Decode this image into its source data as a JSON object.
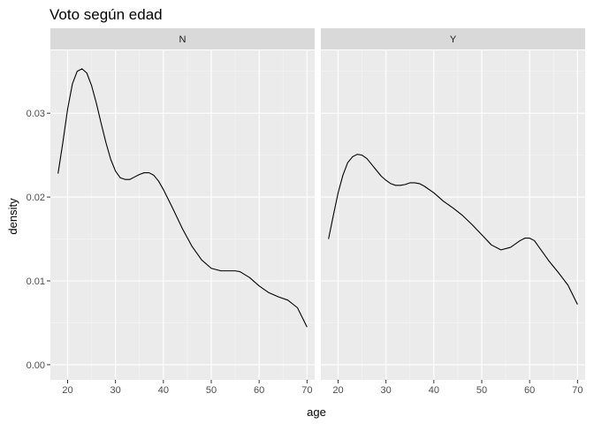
{
  "chart_data": {
    "type": "line",
    "title": "Voto según edad",
    "xlabel": "age",
    "ylabel": "density",
    "xlim": [
      16.4,
      71.6
    ],
    "ylim": [
      -0.0018,
      0.0375
    ],
    "x_ticks": [
      20,
      30,
      40,
      50,
      60,
      70
    ],
    "y_ticks": [
      0.0,
      0.01,
      0.02,
      0.03
    ],
    "y_tick_labels": [
      "0.00",
      "0.01",
      "0.02",
      "0.03"
    ],
    "grid": true,
    "facets": [
      {
        "strip_label": "N",
        "points": [
          [
            18,
            0.0228
          ],
          [
            19,
            0.0265
          ],
          [
            20,
            0.0305
          ],
          [
            21,
            0.0335
          ],
          [
            22,
            0.035
          ],
          [
            23,
            0.0353
          ],
          [
            24,
            0.0348
          ],
          [
            25,
            0.0333
          ],
          [
            26,
            0.0312
          ],
          [
            27,
            0.0288
          ],
          [
            28,
            0.0265
          ],
          [
            29,
            0.0245
          ],
          [
            30,
            0.0231
          ],
          [
            31,
            0.0223
          ],
          [
            32,
            0.0221
          ],
          [
            33,
            0.0221
          ],
          [
            34,
            0.0224
          ],
          [
            35,
            0.0227
          ],
          [
            36,
            0.0229
          ],
          [
            37,
            0.0229
          ],
          [
            38,
            0.0226
          ],
          [
            39,
            0.0219
          ],
          [
            40,
            0.0209
          ],
          [
            42,
            0.0186
          ],
          [
            44,
            0.0162
          ],
          [
            46,
            0.0141
          ],
          [
            48,
            0.0125
          ],
          [
            50,
            0.0115
          ],
          [
            52,
            0.0112
          ],
          [
            54,
            0.0112
          ],
          [
            55,
            0.0112
          ],
          [
            56,
            0.0111
          ],
          [
            58,
            0.0104
          ],
          [
            60,
            0.0094
          ],
          [
            62,
            0.0086
          ],
          [
            64,
            0.0081
          ],
          [
            66,
            0.0077
          ],
          [
            68,
            0.0068
          ],
          [
            70,
            0.0045
          ]
        ]
      },
      {
        "strip_label": "Y",
        "points": [
          [
            18,
            0.015
          ],
          [
            19,
            0.0178
          ],
          [
            20,
            0.0205
          ],
          [
            21,
            0.0226
          ],
          [
            22,
            0.0241
          ],
          [
            23,
            0.0248
          ],
          [
            24,
            0.0251
          ],
          [
            25,
            0.025
          ],
          [
            26,
            0.0246
          ],
          [
            27,
            0.0239
          ],
          [
            28,
            0.0232
          ],
          [
            29,
            0.0225
          ],
          [
            30,
            0.022
          ],
          [
            31,
            0.0216
          ],
          [
            32,
            0.0214
          ],
          [
            33,
            0.0214
          ],
          [
            34,
            0.0215
          ],
          [
            35,
            0.0217
          ],
          [
            36,
            0.0217
          ],
          [
            37,
            0.0216
          ],
          [
            38,
            0.0213
          ],
          [
            40,
            0.0205
          ],
          [
            42,
            0.0195
          ],
          [
            44,
            0.0187
          ],
          [
            46,
            0.0178
          ],
          [
            48,
            0.0167
          ],
          [
            50,
            0.0155
          ],
          [
            52,
            0.0143
          ],
          [
            54,
            0.0137
          ],
          [
            56,
            0.014
          ],
          [
            58,
            0.0148
          ],
          [
            59,
            0.0151
          ],
          [
            60,
            0.0151
          ],
          [
            61,
            0.0148
          ],
          [
            62,
            0.014
          ],
          [
            64,
            0.0124
          ],
          [
            66,
            0.011
          ],
          [
            68,
            0.0095
          ],
          [
            70,
            0.0072
          ]
        ]
      }
    ]
  }
}
